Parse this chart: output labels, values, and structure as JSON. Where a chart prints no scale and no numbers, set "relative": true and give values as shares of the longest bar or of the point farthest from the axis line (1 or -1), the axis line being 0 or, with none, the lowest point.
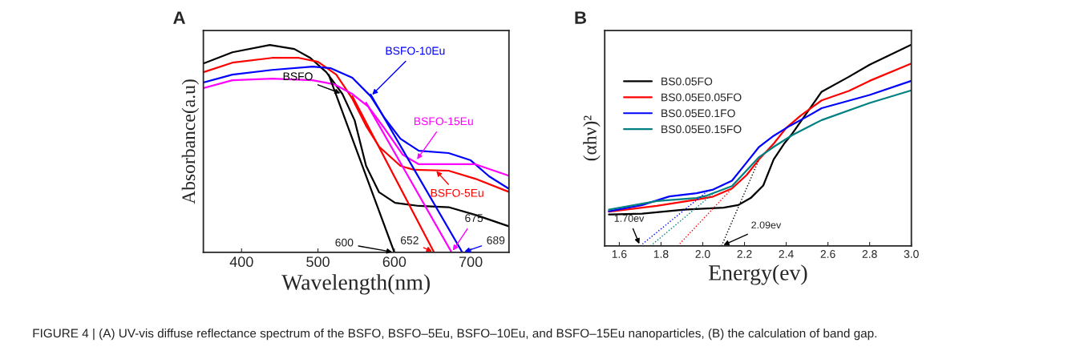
{
  "chart_data": [
    {
      "type": "line",
      "title": "A",
      "xlabel": "Wavelength(nm)",
      "ylabel": "Absorbance(a.u)",
      "relative": true,
      "xlim": [
        350,
        750
      ],
      "xticks": [
        400,
        500,
        600,
        700
      ],
      "marker": "none",
      "line_style": "solid",
      "legend": false,
      "tick_labels": "x",
      "series": [
        {
          "color": "#000000",
          "x": [
            350,
            388,
            437,
            469,
            490,
            511,
            532,
            548,
            563,
            580,
            601,
            632,
            671,
            706,
            749
          ],
          "values": [
            0.911,
            0.965,
            1.0,
            0.981,
            0.938,
            0.869,
            0.764,
            0.637,
            0.417,
            0.29,
            0.239,
            0.224,
            0.218,
            0.181,
            0.127
          ]
        },
        {
          "color": "#ff0000",
          "x": [
            350,
            388,
            440,
            475,
            500,
            524,
            545,
            563,
            580,
            608,
            626,
            671,
            706,
            749
          ],
          "values": [
            0.869,
            0.915,
            0.938,
            0.938,
            0.919,
            0.857,
            0.741,
            0.61,
            0.51,
            0.417,
            0.398,
            0.394,
            0.355,
            0.293
          ]
        },
        {
          "color": "#0000ff",
          "x": [
            350,
            388,
            440,
            493,
            517,
            545,
            569,
            587,
            608,
            632,
            671,
            700,
            724,
            749
          ],
          "values": [
            0.819,
            0.857,
            0.88,
            0.896,
            0.888,
            0.842,
            0.753,
            0.649,
            0.548,
            0.49,
            0.479,
            0.444,
            0.367,
            0.309
          ]
        },
        {
          "color": "#ff00ff",
          "x": [
            350,
            388,
            440,
            493,
            521,
            545,
            566,
            587,
            611,
            632,
            671,
            706,
            749
          ],
          "values": [
            0.792,
            0.83,
            0.838,
            0.83,
            0.811,
            0.764,
            0.703,
            0.598,
            0.471,
            0.425,
            0.425,
            0.425,
            0.371
          ]
        },
        {
          "color": "#000000",
          "x": [
            514,
            600
          ],
          "values": [
            0.857,
            0
          ]
        },
        {
          "color": "#ff0000",
          "x": [
            545,
            652
          ],
          "values": [
            0.753,
            0
          ]
        },
        {
          "color": "#ff00ff",
          "x": [
            563,
            675
          ],
          "values": [
            0.722,
            0
          ]
        },
        {
          "color": "#0000ff",
          "x": [
            569,
            689
          ],
          "values": [
            0.761,
            0
          ]
        }
      ],
      "annotations": [
        {
          "text": "BSFO",
          "x": 532,
          "y": 0.764
        },
        {
          "text": "BSFO-10Eu",
          "x": 569,
          "y": 0.753
        },
        {
          "text": "BSFO-15Eu",
          "x": 628,
          "y": 0.44
        },
        {
          "text": "BSFO-5Eu",
          "x": 653,
          "y": 0.4
        },
        {
          "text": "600",
          "x": 600,
          "y": 0
        },
        {
          "text": "652",
          "x": 652,
          "y": 0
        },
        {
          "text": "675",
          "x": 675,
          "y": 0
        },
        {
          "text": "689",
          "x": 689,
          "y": 0
        },
        "FIGURE 4 | (A) UV-vis diffuse reflectance spectrum of the BSFO, BSFO–5Eu, BSFO–10Eu, and BSFO–15Eu nanoparticles, (B) the calculation of band gap."
      ]
    },
    {
      "type": "line",
      "title": "B",
      "xlabel": "Energy(ev)",
      "ylabel": "(αhν)²",
      "relative": true,
      "xlim": [
        1.53,
        3.0
      ],
      "xticks": [
        {
          "value": 1.6,
          "label": "1.6"
        },
        {
          "value": 1.8,
          "label": "1.8"
        },
        {
          "value": 2.0,
          "label": "2.0"
        },
        {
          "value": 2.2,
          "label": "2.2"
        },
        {
          "value": 2.4,
          "label": "2.4"
        },
        {
          "value": 2.6,
          "label": "2.6"
        },
        {
          "value": 2.8,
          "label": "2.8"
        },
        {
          "value": 3.0,
          "label": "3.0"
        }
      ],
      "marker": "none",
      "legend": "top left",
      "tick_labels": "x",
      "series": [
        {
          "name": "BS0.05FO",
          "color": "#000000",
          "line_style": "solid",
          "x": [
            1.55,
            1.71,
            1.91,
            2.1,
            2.17,
            2.23,
            2.29,
            2.34,
            2.39,
            2.43,
            2.49,
            2.57,
            2.7,
            2.8,
            2.9,
            3.0
          ],
          "values": [
            0.156,
            0.16,
            0.18,
            0.19,
            0.203,
            0.238,
            0.3,
            0.43,
            0.508,
            0.559,
            0.648,
            0.766,
            0.84,
            0.9,
            0.95,
            1.0
          ]
        },
        {
          "name": "BS0.05E0.05FO",
          "color": "#ff0000",
          "line_style": "solid",
          "x": [
            1.55,
            1.78,
            1.97,
            2.05,
            2.14,
            2.21,
            2.27,
            2.34,
            2.4,
            2.47,
            2.57,
            2.7,
            2.8,
            3.0
          ],
          "values": [
            0.17,
            0.199,
            0.23,
            0.245,
            0.285,
            0.352,
            0.43,
            0.508,
            0.586,
            0.648,
            0.723,
            0.77,
            0.82,
            0.906
          ]
        },
        {
          "name": "BS0.05E0.1FO",
          "color": "#0000ff",
          "line_style": "solid",
          "x": [
            1.55,
            1.71,
            1.84,
            1.97,
            2.05,
            2.14,
            2.21,
            2.27,
            2.34,
            2.42,
            2.49,
            2.57,
            2.8,
            3.0
          ],
          "values": [
            0.172,
            0.203,
            0.246,
            0.262,
            0.28,
            0.324,
            0.414,
            0.492,
            0.547,
            0.598,
            0.637,
            0.684,
            0.75,
            0.82
          ]
        },
        {
          "name": "BS0.05E0.15FO",
          "color": "#008080",
          "line_style": "solid",
          "x": [
            1.55,
            1.78,
            1.97,
            2.02,
            2.14,
            2.21,
            2.27,
            2.34,
            2.43,
            2.57,
            2.8,
            3.0
          ],
          "values": [
            0.18,
            0.223,
            0.238,
            0.25,
            0.297,
            0.375,
            0.441,
            0.492,
            0.551,
            0.625,
            0.71,
            0.773
          ]
        },
        {
          "color": "#000000",
          "line_style": "dotted",
          "x": [
            2.09,
            2.27
          ],
          "values": [
            0,
            0.43
          ]
        },
        {
          "color": "#ff0000",
          "line_style": "dotted",
          "x": [
            1.88,
            2.14
          ],
          "values": [
            0,
            0.285
          ]
        },
        {
          "color": "#0000ff",
          "line_style": "dotted",
          "x": [
            1.7,
            2.02
          ],
          "values": [
            0,
            0.27
          ]
        },
        {
          "color": "#008080",
          "line_style": "dotted",
          "x": [
            1.75,
            2.05
          ],
          "values": [
            0,
            0.26
          ]
        }
      ],
      "annotations": [
        {
          "text": "1.70ev",
          "x": 1.7,
          "y": 0
        },
        {
          "text": "2.09ev",
          "x": 2.09,
          "y": 0
        }
      ]
    }
  ]
}
